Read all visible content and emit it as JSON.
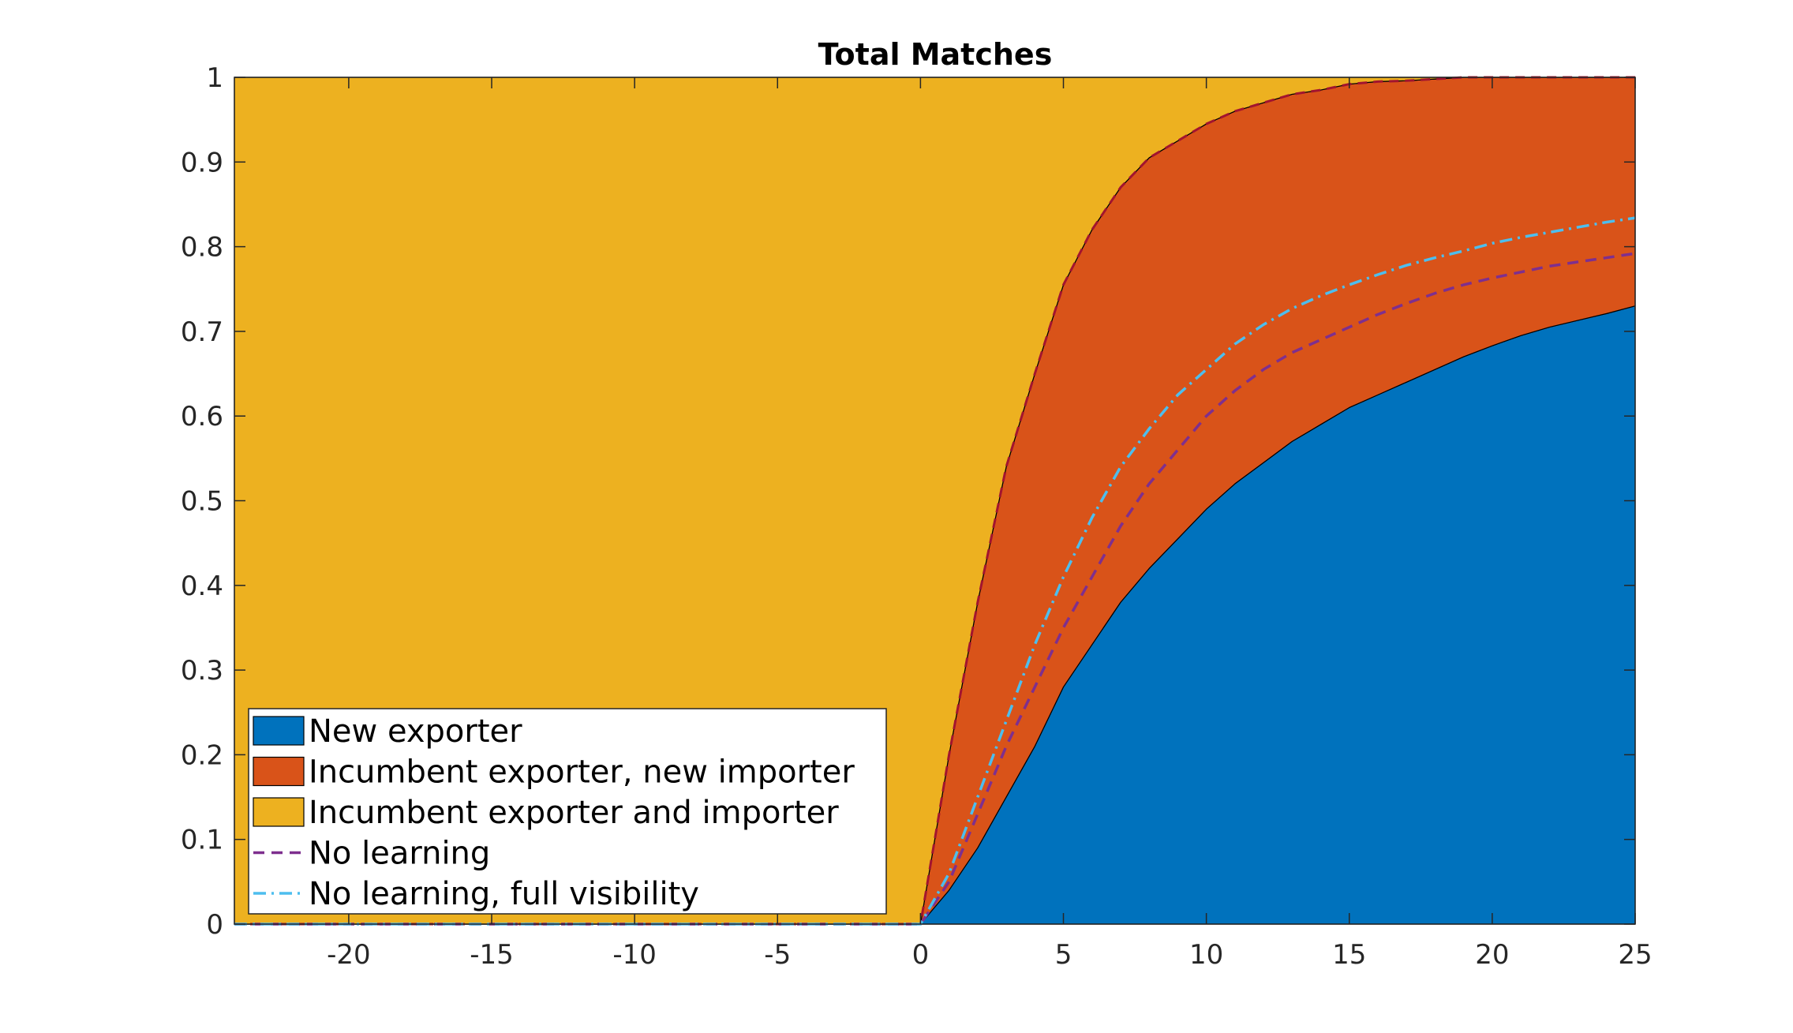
{
  "chart_data": {
    "type": "area",
    "title": "Total Matches",
    "xlabel": "",
    "ylabel": "",
    "xlim": [
      -24,
      25
    ],
    "ylim": [
      0,
      1
    ],
    "grid": false,
    "legend_position": "bottom-left",
    "x_ticks": [
      -20,
      -15,
      -10,
      -5,
      0,
      5,
      10,
      15,
      20,
      25
    ],
    "y_ticks": [
      0,
      0.1,
      0.2,
      0.3,
      0.4,
      0.5,
      0.6,
      0.7,
      0.8,
      0.9,
      1
    ],
    "x_tick_labels": [
      "-20",
      "-15",
      "-10",
      "-5",
      "0",
      "5",
      "10",
      "15",
      "20",
      "25"
    ],
    "y_tick_labels": [
      "0",
      "0.1",
      "0.2",
      "0.3",
      "0.4",
      "0.5",
      "0.6",
      "0.7",
      "0.8",
      "0.9",
      "1"
    ],
    "x": [
      -24,
      0,
      1,
      2,
      3,
      4,
      5,
      6,
      7,
      8,
      9,
      10,
      11,
      12,
      13,
      14,
      15,
      16,
      17,
      18,
      19,
      20,
      21,
      22,
      23,
      24,
      25
    ],
    "series": [
      {
        "name": "New exporter",
        "kind": "stacked-area",
        "color": "#0072BD",
        "values": [
          0,
          0,
          0.04,
          0.09,
          0.15,
          0.21,
          0.28,
          0.33,
          0.38,
          0.42,
          0.455,
          0.49,
          0.52,
          0.545,
          0.57,
          0.59,
          0.61,
          0.625,
          0.64,
          0.655,
          0.67,
          0.683,
          0.695,
          0.705,
          0.713,
          0.721,
          0.73
        ]
      },
      {
        "name": "Incumbent exporter, new importer",
        "kind": "stacked-area",
        "color": "#D95319",
        "values": [
          0,
          0,
          0.16,
          0.29,
          0.39,
          0.44,
          0.475,
          0.49,
          0.49,
          0.485,
          0.47,
          0.455,
          0.44,
          0.425,
          0.41,
          0.395,
          0.382,
          0.37,
          0.356,
          0.343,
          0.33,
          0.317,
          0.305,
          0.295,
          0.287,
          0.279,
          0.27
        ]
      },
      {
        "name": "Incumbent exporter and importer",
        "kind": "stacked-area",
        "color": "#EDB120",
        "values": [
          1,
          1,
          0.8,
          0.62,
          0.46,
          0.35,
          0.245,
          0.18,
          0.13,
          0.095,
          0.075,
          0.055,
          0.04,
          0.03,
          0.02,
          0.015,
          0.008,
          0.005,
          0.004,
          0.002,
          0,
          0,
          0,
          0,
          0,
          0,
          0
        ]
      },
      {
        "name": "No learning",
        "kind": "dashed-line",
        "color": "#7E2F8E",
        "values": [
          0,
          0,
          0.05,
          0.13,
          0.21,
          0.28,
          0.35,
          0.41,
          0.47,
          0.52,
          0.56,
          0.6,
          0.63,
          0.655,
          0.675,
          0.69,
          0.705,
          0.72,
          0.733,
          0.745,
          0.755,
          0.763,
          0.77,
          0.777,
          0.782,
          0.787,
          0.792
        ]
      },
      {
        "name": "No learning, full visibility",
        "kind": "dashdot-line",
        "color": "#4DBEEE",
        "values": [
          0,
          0,
          0.06,
          0.15,
          0.24,
          0.33,
          0.41,
          0.48,
          0.54,
          0.585,
          0.625,
          0.655,
          0.685,
          0.708,
          0.727,
          0.742,
          0.755,
          0.767,
          0.778,
          0.787,
          0.795,
          0.804,
          0.811,
          0.817,
          0.823,
          0.829,
          0.834
        ]
      }
    ],
    "upper_outline": {
      "color": "#A2142F",
      "values": [
        0,
        0,
        0.2,
        0.38,
        0.54,
        0.65,
        0.755,
        0.82,
        0.87,
        0.905,
        0.925,
        0.945,
        0.96,
        0.97,
        0.98,
        0.985,
        0.992,
        0.995,
        0.996,
        0.998,
        1,
        1,
        1,
        1,
        1,
        1,
        1
      ]
    }
  }
}
